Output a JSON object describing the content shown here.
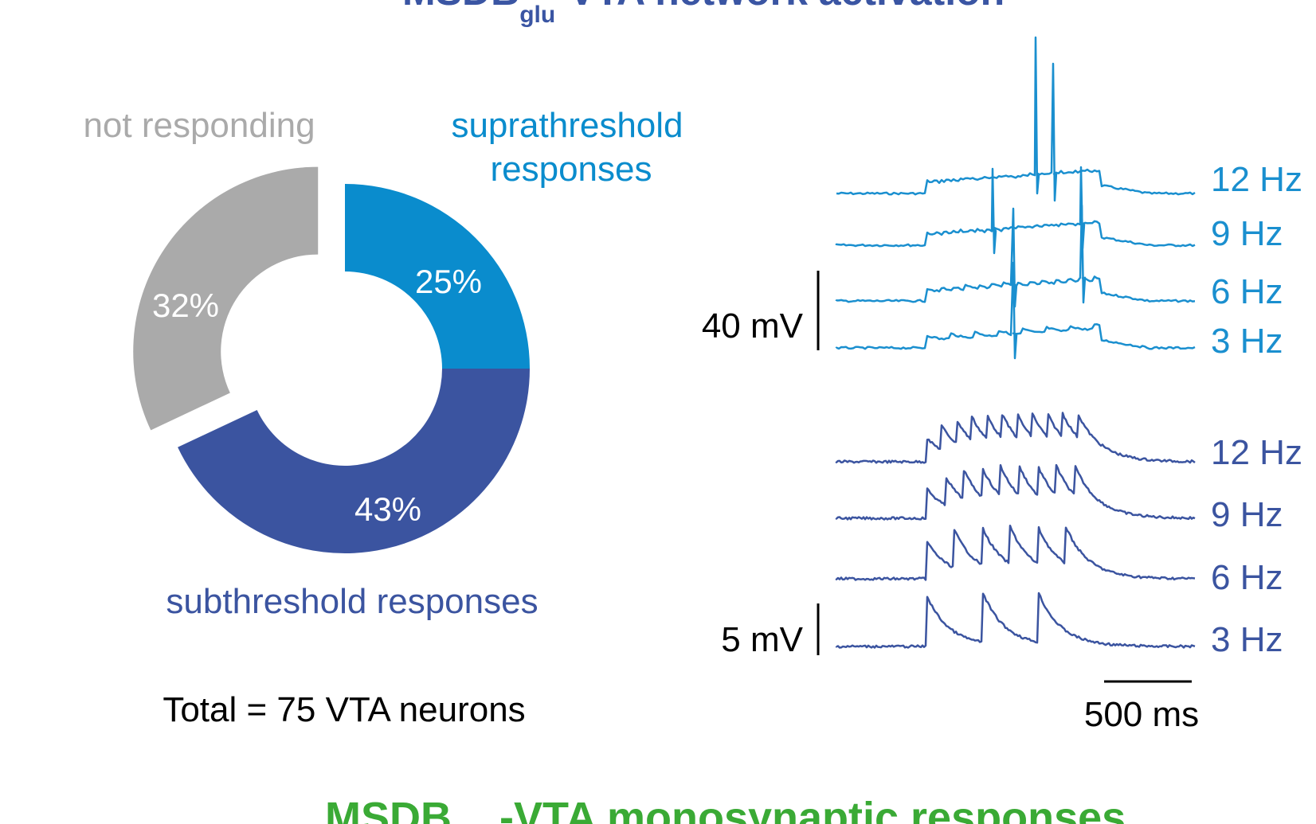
{
  "header": {
    "title_main": "MSDB",
    "title_sub": "glu",
    "title_rest": "-VTA network activation",
    "title_color": "#3a55a3"
  },
  "footer": {
    "title_main": "MSDB",
    "title_rest": "-VTA monosynaptic responses",
    "title_color": "#3aaa35"
  },
  "chart_data": [
    {
      "type": "pie",
      "style": "donut",
      "slices": [
        {
          "label": "suprathreshold responses",
          "value": 25,
          "value_label": "25%",
          "color": "#0a8ccd",
          "exploded": false
        },
        {
          "label": "subthreshold responses",
          "value": 43,
          "value_label": "43%",
          "color": "#3b54a0",
          "exploded": false
        },
        {
          "label": "not responding",
          "value": 32,
          "value_label": "32%",
          "color": "#aaaaaa",
          "exploded": true
        }
      ],
      "category_labels": {
        "supra_line1": "suprathreshold",
        "supra_line2": "responses",
        "sub": "subthreshold responses",
        "none": "not responding"
      },
      "total_label": "Total = 75 VTA neurons"
    },
    {
      "type": "line",
      "panel": "suprathreshold example traces",
      "color": "#1a8fcf",
      "scale_bar": {
        "value": 40,
        "unit": "mV",
        "label": "40 mV"
      },
      "series": [
        {
          "name": "12 Hz",
          "label": "12 Hz"
        },
        {
          "name": "9 Hz",
          "label": "9 Hz"
        },
        {
          "name": "6 Hz",
          "label": "6 Hz"
        },
        {
          "name": "3 Hz",
          "label": "3 Hz"
        }
      ]
    },
    {
      "type": "line",
      "panel": "subthreshold example traces",
      "color": "#3b54a0",
      "scale_bar": {
        "value": 5,
        "unit": "mV",
        "label": "5 mV"
      },
      "time_scale_bar": {
        "value": 500,
        "unit": "ms",
        "label": "500 ms"
      },
      "series": [
        {
          "name": "12 Hz",
          "label": "12 Hz"
        },
        {
          "name": "9 Hz",
          "label": "9 Hz"
        },
        {
          "name": "6 Hz",
          "label": "6 Hz"
        },
        {
          "name": "3 Hz",
          "label": "3 Hz"
        }
      ]
    }
  ]
}
